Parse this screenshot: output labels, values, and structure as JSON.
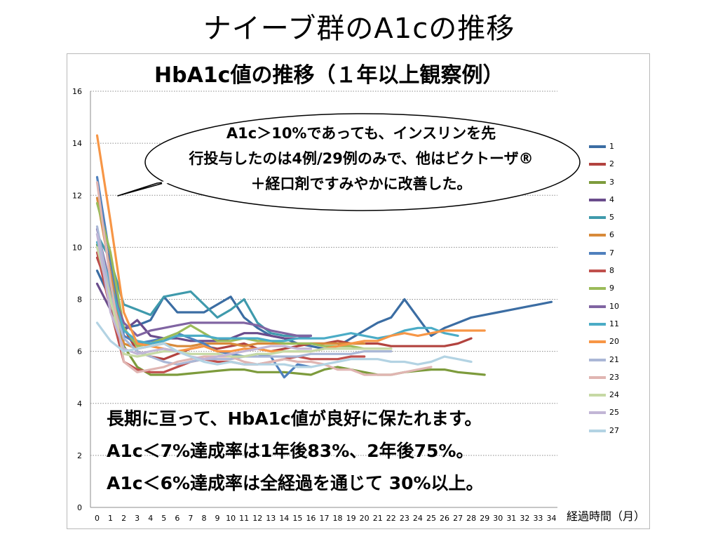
{
  "slide_title": "ナイーブ群のA1cの推移",
  "bubble_lines": [
    "A1c＞10%であっても、インスリンを先",
    "行投与したのは4例/29例のみで、他はビクトーザ®",
    "＋経口剤ですみやかに改善した。"
  ],
  "summary_lines": [
    "長期に亘って、HbA1c値が良好に保たれます。",
    "A1c＜7%達成率は1年後83%、2年後75%。",
    "A1c＜6%達成率は全経過を通じて 30%以上。"
  ],
  "chart_data": {
    "type": "line",
    "title": "HbA1c値の推移（１年以上観察例）",
    "xlabel": "経過時間（月）",
    "ylabel": "",
    "ylim": [
      0,
      16
    ],
    "yticks": [
      0,
      2,
      4,
      6,
      8,
      10,
      12,
      14,
      16
    ],
    "xlim": [
      0,
      34
    ],
    "xticks": [
      0,
      1,
      2,
      3,
      4,
      5,
      6,
      7,
      8,
      9,
      10,
      11,
      12,
      13,
      14,
      15,
      16,
      17,
      18,
      19,
      20,
      21,
      22,
      23,
      24,
      25,
      26,
      27,
      28,
      29,
      30,
      31,
      32,
      33,
      34
    ],
    "grid": "horizontal dotted",
    "legend_position": "right",
    "series": [
      {
        "name": "1",
        "color": "#3b6da3",
        "x": [
          0,
          1,
          2,
          3,
          4,
          5,
          6,
          7,
          8,
          9,
          10,
          11,
          12,
          13,
          14,
          15,
          16,
          17,
          18,
          19,
          20,
          21,
          22,
          23,
          24,
          25,
          26,
          27,
          28,
          29,
          30,
          31,
          32,
          33,
          34
        ],
        "y": [
          9.1,
          8.0,
          6.9,
          7.0,
          7.2,
          8.1,
          7.5,
          7.5,
          7.5,
          7.8,
          8.1,
          7.3,
          6.9,
          6.6,
          6.5,
          6.3,
          6.2,
          6.1,
          6.2,
          6.5,
          6.8,
          7.1,
          7.3,
          8.0,
          7.3,
          6.6,
          6.9,
          7.1,
          7.3,
          7.4,
          7.5,
          7.6,
          7.7,
          7.8,
          7.9
        ]
      },
      {
        "name": "2",
        "color": "#b2433f",
        "x": [
          0,
          1,
          2,
          3,
          4,
          5,
          6,
          7,
          8,
          9,
          10,
          11,
          12,
          13,
          14,
          15,
          16,
          17,
          18,
          19,
          20,
          21,
          22,
          23,
          24,
          25,
          26,
          27,
          28
        ],
        "y": [
          9.6,
          8.2,
          6.9,
          6.0,
          5.8,
          5.7,
          5.9,
          6.1,
          6.2,
          6.1,
          6.2,
          6.3,
          6.1,
          6.0,
          6.1,
          6.2,
          6.3,
          6.3,
          6.4,
          6.3,
          6.3,
          6.3,
          6.2,
          6.2,
          6.2,
          6.2,
          6.2,
          6.3,
          6.5
        ]
      },
      {
        "name": "3",
        "color": "#7d9b3c",
        "x": [
          0,
          1,
          2,
          3,
          4,
          5,
          6,
          7,
          8,
          9,
          10,
          11,
          12,
          13,
          14,
          15,
          16,
          17,
          18,
          19,
          20,
          21,
          22,
          23,
          24,
          25,
          26,
          27,
          28,
          29
        ],
        "y": [
          10.1,
          8.4,
          6.2,
          5.4,
          5.1,
          5.1,
          5.1,
          5.15,
          5.2,
          5.25,
          5.3,
          5.3,
          5.2,
          5.2,
          5.2,
          5.15,
          5.1,
          5.3,
          5.4,
          5.3,
          5.2,
          5.1,
          5.1,
          5.2,
          5.25,
          5.3,
          5.3,
          5.2,
          5.15,
          5.1
        ]
      },
      {
        "name": "4",
        "color": "#6a4c8c",
        "x": [
          0,
          1,
          2,
          3,
          4,
          5,
          6,
          7,
          8,
          9,
          10,
          11,
          12,
          13,
          14,
          15,
          16
        ],
        "y": [
          8.6,
          7.6,
          6.8,
          7.2,
          6.6,
          6.5,
          6.5,
          6.4,
          6.4,
          6.4,
          6.5,
          6.7,
          6.7,
          6.6,
          6.5,
          6.5,
          6.6
        ]
      },
      {
        "name": "5",
        "color": "#3f9aac",
        "x": [
          0,
          1,
          2,
          3,
          4,
          5,
          6,
          7,
          8,
          9,
          10,
          11,
          12,
          13,
          14,
          15,
          16
        ],
        "y": [
          10.5,
          9.5,
          7.8,
          7.6,
          7.4,
          8.1,
          8.2,
          8.3,
          7.8,
          7.3,
          7.6,
          8.0,
          7.1,
          6.7,
          6.6,
          6.6,
          6.6
        ]
      },
      {
        "name": "6",
        "color": "#d88a3a",
        "x": [
          0,
          1,
          2,
          3,
          4,
          5,
          6,
          7,
          8,
          9,
          10,
          11,
          12,
          13,
          14,
          15,
          16,
          17,
          18,
          19,
          20
        ],
        "y": [
          11.9,
          9.0,
          6.3,
          6.1,
          6.2,
          6.3,
          6.2,
          6.2,
          6.3,
          6.3,
          6.3,
          6.2,
          6.3,
          6.3,
          6.3,
          6.3,
          6.3,
          6.3,
          6.3,
          6.3,
          6.3
        ]
      },
      {
        "name": "7",
        "color": "#4f80bd",
        "x": [
          0,
          1,
          2,
          3,
          4,
          5,
          6,
          7,
          8,
          9,
          10,
          11,
          12,
          13,
          14,
          15,
          16
        ],
        "y": [
          12.7,
          9.5,
          6.6,
          6.3,
          6.4,
          6.5,
          6.7,
          6.5,
          6.3,
          6.0,
          5.9,
          5.8,
          5.9,
          5.8,
          5.0,
          5.5,
          5.4
        ]
      },
      {
        "name": "8",
        "color": "#c0504d",
        "x": [
          0,
          1,
          2,
          3,
          4,
          5,
          6,
          7,
          8,
          9,
          10,
          11,
          12,
          13,
          14,
          15,
          16,
          17,
          18,
          19,
          20
        ],
        "y": [
          9.8,
          7.6,
          5.6,
          5.3,
          5.2,
          5.2,
          5.4,
          5.6,
          5.7,
          5.6,
          5.6,
          5.5,
          5.5,
          5.6,
          5.7,
          5.8,
          5.7,
          5.7,
          5.7,
          5.8,
          5.8
        ]
      },
      {
        "name": "9",
        "color": "#9bbb59",
        "x": [
          0,
          1,
          2,
          3,
          4,
          5,
          6,
          7,
          8,
          9,
          10,
          11,
          12,
          13,
          14,
          15,
          16,
          17,
          18,
          19,
          20,
          21,
          22
        ],
        "y": [
          11.7,
          9.8,
          6.9,
          6.2,
          6.3,
          6.5,
          6.7,
          7.0,
          6.7,
          6.4,
          6.4,
          6.5,
          6.4,
          6.4,
          6.3,
          6.3,
          6.3,
          6.2,
          6.2,
          6.2,
          6.1,
          6.1,
          6.1
        ]
      },
      {
        "name": "10",
        "color": "#8064a2",
        "x": [
          0,
          1,
          2,
          3,
          4,
          5,
          6,
          7,
          8,
          9,
          10,
          11,
          12,
          13,
          14,
          15,
          16
        ],
        "y": [
          10.7,
          8.5,
          7.1,
          6.6,
          6.8,
          6.9,
          7.0,
          7.1,
          7.1,
          7.1,
          7.1,
          7.1,
          7.0,
          6.8,
          6.7,
          6.6,
          6.6
        ]
      },
      {
        "name": "11",
        "color": "#4bacc6",
        "x": [
          0,
          1,
          2,
          3,
          4,
          5,
          6,
          7,
          8,
          9,
          10,
          11,
          12,
          13,
          14,
          15,
          16,
          17,
          18,
          19,
          20,
          21,
          22,
          23,
          24,
          25,
          26,
          27
        ],
        "y": [
          10.2,
          8.6,
          6.8,
          6.4,
          6.3,
          6.4,
          6.6,
          6.6,
          6.6,
          6.5,
          6.5,
          6.5,
          6.5,
          6.4,
          6.4,
          6.5,
          6.5,
          6.5,
          6.6,
          6.7,
          6.6,
          6.5,
          6.6,
          6.8,
          6.9,
          6.9,
          6.7,
          6.6
        ]
      },
      {
        "name": "20",
        "color": "#f79646",
        "x": [
          0,
          1,
          2,
          3,
          4,
          5,
          6,
          7,
          8,
          9,
          10,
          11,
          12,
          13,
          14,
          15,
          16,
          17,
          18,
          19,
          20,
          21,
          22,
          23,
          24,
          25,
          26,
          27,
          28,
          29
        ],
        "y": [
          14.3,
          11.0,
          7.5,
          6.3,
          6.2,
          6.1,
          6.0,
          6.1,
          6.2,
          6.0,
          6.0,
          6.1,
          6.1,
          6.0,
          6.0,
          6.0,
          6.0,
          6.1,
          6.2,
          6.3,
          6.4,
          6.4,
          6.6,
          6.7,
          6.6,
          6.7,
          6.8,
          6.8,
          6.8,
          6.8
        ]
      },
      {
        "name": "21",
        "color": "#aab7d6",
        "x": [
          0,
          1,
          2,
          3,
          4,
          5,
          6,
          7,
          8,
          9,
          10,
          11,
          12,
          13,
          14,
          15,
          16,
          17,
          18,
          19,
          20,
          21,
          22
        ],
        "y": [
          10.8,
          8.1,
          6.5,
          6.0,
          5.8,
          5.6,
          5.5,
          5.6,
          5.7,
          5.7,
          5.7,
          5.8,
          5.8,
          5.8,
          5.8,
          5.8,
          5.9,
          5.9,
          5.9,
          5.9,
          6.0,
          6.0,
          6.0
        ]
      },
      {
        "name": "23",
        "color": "#e0b5b2",
        "x": [
          0,
          1,
          2,
          3,
          4,
          5,
          6,
          7,
          8,
          9,
          10,
          11,
          12,
          13,
          14,
          15,
          16,
          17,
          18,
          19,
          20,
          21,
          22,
          23,
          24,
          25
        ],
        "y": [
          12.5,
          8.7,
          5.6,
          5.2,
          5.3,
          5.4,
          5.6,
          5.7,
          5.8,
          5.8,
          5.8,
          5.6,
          5.5,
          5.6,
          5.7,
          5.6,
          5.6,
          5.5,
          5.3,
          5.3,
          5.1,
          5.1,
          5.1,
          5.2,
          5.3,
          5.4
        ]
      },
      {
        "name": "24",
        "color": "#c6d9a5",
        "x": [
          0,
          1,
          2,
          3,
          4,
          5,
          6,
          7,
          8,
          9,
          10,
          11,
          12,
          13,
          14,
          15,
          16,
          17,
          18,
          19,
          20,
          21,
          22
        ],
        "y": [
          10.0,
          8.0,
          5.9,
          5.8,
          5.9,
          6.0,
          6.0,
          5.9,
          5.9,
          5.9,
          5.8,
          5.8,
          5.9,
          5.9,
          6.0,
          6.0,
          6.0,
          6.1,
          6.1,
          6.1,
          6.1,
          6.1,
          6.1
        ]
      },
      {
        "name": "25",
        "color": "#c2b6d6",
        "x": [
          0,
          1,
          2,
          3,
          4,
          5,
          6,
          7,
          8,
          9,
          10,
          11,
          12,
          13,
          14,
          15,
          16
        ],
        "y": [
          10.5,
          7.5,
          6.1,
          5.9,
          6.0,
          6.1,
          6.0,
          5.8,
          5.7,
          5.8,
          5.9,
          6.0,
          6.1,
          6.2,
          6.2,
          6.1,
          6.1
        ]
      },
      {
        "name": "27",
        "color": "#b3d3e3",
        "x": [
          0,
          1,
          2,
          3,
          4,
          5,
          6,
          7,
          8,
          9,
          10,
          11,
          12,
          13,
          14,
          15,
          16,
          17,
          18,
          19,
          20,
          21,
          22,
          23,
          24,
          25,
          26,
          27,
          28
        ],
        "y": [
          7.1,
          6.4,
          6.0,
          6.1,
          6.2,
          6.3,
          6.0,
          5.8,
          5.6,
          5.5,
          5.6,
          5.5,
          5.5,
          5.5,
          5.5,
          5.4,
          5.4,
          5.5,
          5.6,
          5.7,
          5.7,
          5.7,
          5.6,
          5.6,
          5.5,
          5.6,
          5.8,
          5.7,
          5.6
        ]
      }
    ]
  }
}
